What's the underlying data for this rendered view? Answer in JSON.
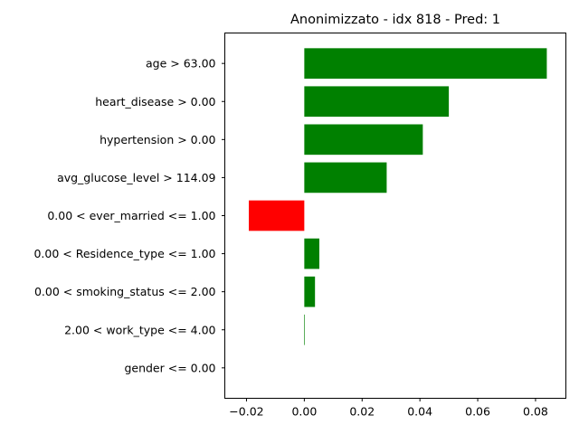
{
  "chart_data": {
    "type": "bar",
    "orientation": "horizontal",
    "title": "Anonimizzato - idx 818 - Pred: 1",
    "xlabel": "",
    "ylabel": "",
    "grid": false,
    "legend": "none",
    "xlim": [
      -0.0275,
      0.0905
    ],
    "xticks": [
      -0.02,
      0.0,
      0.02,
      0.04,
      0.06,
      0.08
    ],
    "xtick_labels": [
      "−0.02",
      "0.00",
      "0.02",
      "0.04",
      "0.06",
      "0.08"
    ],
    "categories": [
      "age > 63.00",
      "heart_disease > 0.00",
      "hypertension > 0.00",
      "avg_glucose_level > 114.09",
      "0.00 < ever_married <= 1.00",
      "0.00 < Residence_type <= 1.00",
      "0.00 < smoking_status <= 2.00",
      "2.00 < work_type <= 4.00",
      "gender <= 0.00"
    ],
    "values": [
      0.0839,
      0.05,
      0.041,
      0.0285,
      -0.0192,
      0.0052,
      0.0037,
      0.0002,
      0.0
    ],
    "colors": {
      "positive": "#008000",
      "negative": "#ff0000"
    }
  }
}
